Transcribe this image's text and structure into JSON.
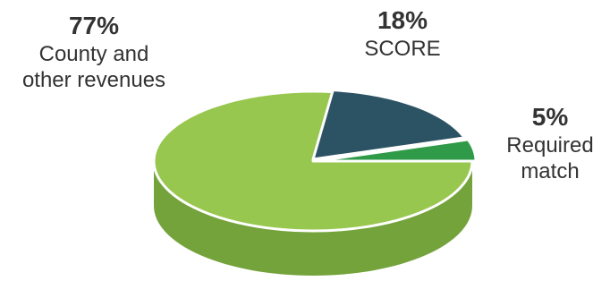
{
  "chart_data": {
    "type": "pie",
    "three_d": true,
    "legend": "none",
    "slices": [
      {
        "percent": 77,
        "value_label": "77%",
        "label": "County and\nother revenues",
        "color": "#97c74e",
        "side_color": "#74a33c"
      },
      {
        "percent": 18,
        "value_label": "18%",
        "label": "SCORE",
        "color": "#2c5364",
        "side_color": "#213e4b"
      },
      {
        "percent": 5,
        "value_label": "5%",
        "label": "Required\nmatch",
        "color": "#2f9a48",
        "side_color": "#237536"
      }
    ]
  }
}
